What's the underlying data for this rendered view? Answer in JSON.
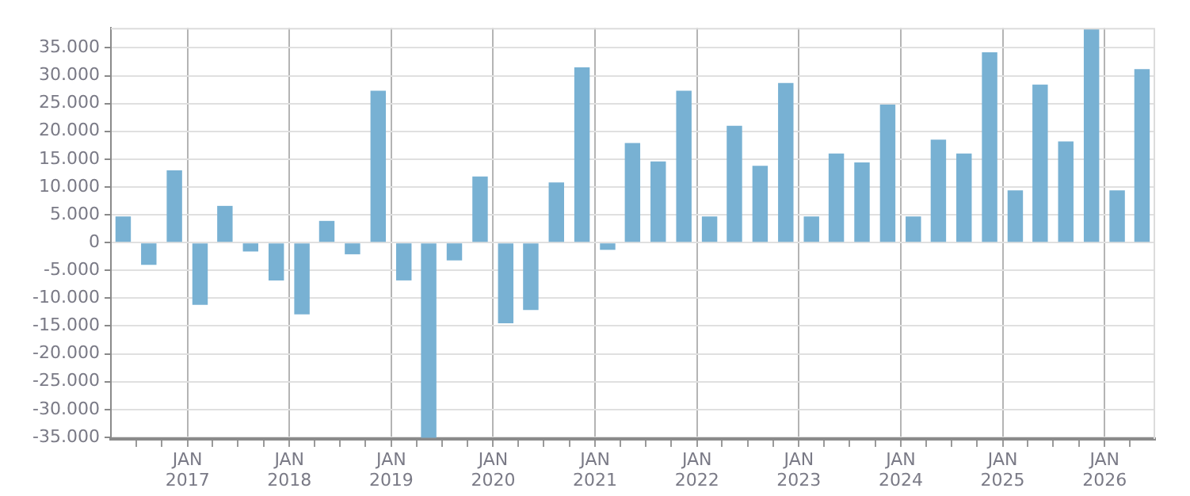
{
  "chart_data": {
    "type": "bar",
    "x": [
      "2016-05-15",
      "2016-08-15",
      "2016-11-15",
      "2017-02-15",
      "2017-05-15",
      "2017-08-15",
      "2017-11-15",
      "2018-02-15",
      "2018-05-15",
      "2018-08-15",
      "2018-11-15",
      "2019-02-15",
      "2019-05-15",
      "2019-08-15",
      "2019-11-15",
      "2020-02-15",
      "2020-05-15",
      "2020-08-15",
      "2020-11-15",
      "2021-02-15",
      "2021-05-15",
      "2021-08-15",
      "2021-11-15",
      "2022-02-15",
      "2022-05-15",
      "2022-08-15",
      "2022-11-15",
      "2023-02-15",
      "2023-05-15",
      "2023-08-15",
      "2023-11-15",
      "2024-02-15",
      "2024-05-15",
      "2024-08-15",
      "2024-11-15",
      "2025-02-15",
      "2025-05-15",
      "2025-08-15",
      "2025-11-15",
      "2026-02-15",
      "2026-05-15"
    ],
    "values": [
      4700,
      -4000,
      13000,
      -11200,
      6600,
      -1600,
      -6800,
      -12900,
      3900,
      -2100,
      27300,
      -6800,
      -35100,
      -3200,
      11900,
      -14500,
      -12100,
      10800,
      31500,
      -1300,
      17900,
      14600,
      27300,
      4700,
      21000,
      13800,
      28700,
      4700,
      16000,
      14400,
      24800,
      4700,
      18500,
      16000,
      34200,
      9400,
      28400,
      18200,
      38400,
      9400,
      31200
    ],
    "color": "#78b1d3",
    "xlim": [
      "2016-04",
      "2026-07"
    ],
    "xticks": [
      {
        "value": "2016-07",
        "label": null
      },
      {
        "value": "2016-10",
        "label": null
      },
      {
        "value": "2017-01",
        "label": "JAN 2017"
      },
      {
        "value": "2017-04",
        "label": null
      },
      {
        "value": "2017-07",
        "label": null
      },
      {
        "value": "2017-10",
        "label": null
      },
      {
        "value": "2018-01",
        "label": "JAN 2018"
      },
      {
        "value": "2018-04",
        "label": null
      },
      {
        "value": "2018-07",
        "label": null
      },
      {
        "value": "2018-10",
        "label": null
      },
      {
        "value": "2019-01",
        "label": "JAN 2019"
      },
      {
        "value": "2019-04",
        "label": null
      },
      {
        "value": "2019-07",
        "label": null
      },
      {
        "value": "2019-10",
        "label": null
      },
      {
        "value": "2020-01",
        "label": "JAN 2020"
      },
      {
        "value": "2020-04",
        "label": null
      },
      {
        "value": "2020-07",
        "label": null
      },
      {
        "value": "2020-10",
        "label": null
      },
      {
        "value": "2021-01",
        "label": "JAN 2021"
      },
      {
        "value": "2021-04",
        "label": null
      },
      {
        "value": "2021-07",
        "label": null
      },
      {
        "value": "2021-10",
        "label": null
      },
      {
        "value": "2022-01",
        "label": "JAN 2022"
      },
      {
        "value": "2022-04",
        "label": null
      },
      {
        "value": "2022-07",
        "label": null
      },
      {
        "value": "2022-10",
        "label": null
      },
      {
        "value": "2023-01",
        "label": "JAN 2023"
      },
      {
        "value": "2023-04",
        "label": null
      },
      {
        "value": "2023-07",
        "label": null
      },
      {
        "value": "2023-10",
        "label": null
      },
      {
        "value": "2024-01",
        "label": "JAN 2024"
      },
      {
        "value": "2024-04",
        "label": null
      },
      {
        "value": "2024-07",
        "label": null
      },
      {
        "value": "2024-10",
        "label": null
      },
      {
        "value": "2025-01",
        "label": "JAN 2025"
      },
      {
        "value": "2025-04",
        "label": null
      },
      {
        "value": "2025-07",
        "label": null
      },
      {
        "value": "2025-10",
        "label": null
      },
      {
        "value": "2026-01",
        "label": "JAN 2026"
      },
      {
        "value": "2026-04",
        "label": null
      }
    ],
    "ylim": [
      -35300,
      38600
    ],
    "yticks": [
      {
        "value": -35000,
        "label": "-35.000"
      },
      {
        "value": -30000,
        "label": "-30.000"
      },
      {
        "value": -25000,
        "label": "-25.000"
      },
      {
        "value": -20000,
        "label": "-20.000"
      },
      {
        "value": -15000,
        "label": "-15.000"
      },
      {
        "value": -10000,
        "label": "-10.000"
      },
      {
        "value": -5000,
        "label": "-5.000"
      },
      {
        "value": 0,
        "label": "0"
      },
      {
        "value": 5000,
        "label": "5.000"
      },
      {
        "value": 10000,
        "label": "10.000"
      },
      {
        "value": 15000,
        "label": "15.000"
      },
      {
        "value": 20000,
        "label": "20.000"
      },
      {
        "value": 25000,
        "label": "25.000"
      },
      {
        "value": 30000,
        "label": "30.000"
      },
      {
        "value": 35000,
        "label": "35.000"
      }
    ],
    "grid": true,
    "legend": false
  }
}
